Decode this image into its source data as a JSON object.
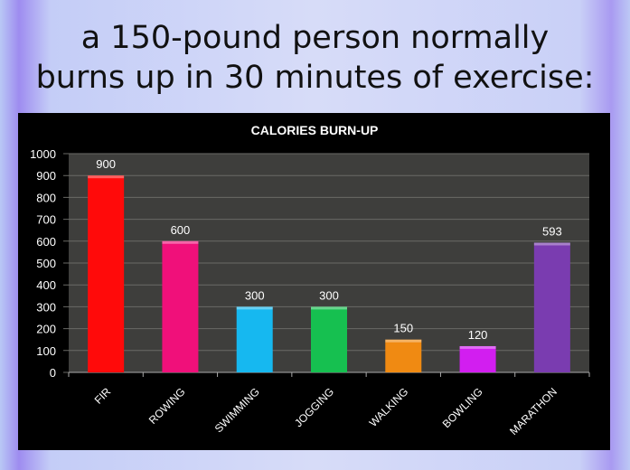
{
  "headline": {
    "line1": "a 150-pound person normally",
    "line2": "burns up in 30 minutes of exercise:"
  },
  "chart_data": {
    "type": "bar",
    "title": "CALORIES BURN-UP",
    "categories": [
      "FIR",
      "ROWING",
      "SWIMMING",
      "JOGGING",
      "WALKING",
      "BOWLING",
      "MARATHON"
    ],
    "values": [
      900,
      600,
      300,
      300,
      150,
      120,
      593
    ],
    "colors": [
      "#ff0a0a",
      "#f0107a",
      "#16b8f0",
      "#16c050",
      "#f08a12",
      "#d21ef0",
      "#7a3cb0"
    ],
    "ylim": [
      0,
      1000
    ],
    "yticks": [
      "0",
      "100",
      "200",
      "300",
      "400",
      "500",
      "600",
      "700",
      "800",
      "900",
      "1000"
    ],
    "grid": true,
    "xlabel": "",
    "ylabel": "",
    "background": "#000000",
    "plot_background": "#3e3e3c"
  }
}
